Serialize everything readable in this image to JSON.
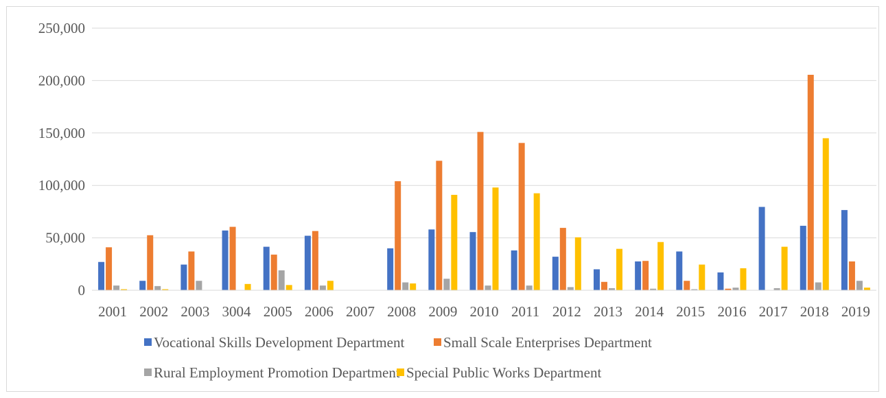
{
  "chart_data": {
    "type": "bar",
    "categories": [
      "2001",
      "2002",
      "2003",
      "3004",
      "2005",
      "2006",
      "2007",
      "2008",
      "2009",
      "2010",
      "2011",
      "2012",
      "2013",
      "2014",
      "2015",
      "2016",
      "2017",
      "2018",
      "2019"
    ],
    "series": [
      {
        "name": "Vocational Skills Development Department",
        "color": "#4472C4",
        "values": [
          27000,
          9000,
          24500,
          57000,
          41500,
          52000,
          0,
          40000,
          58000,
          55500,
          38000,
          32000,
          20000,
          27500,
          37000,
          17000,
          79500,
          61500,
          76500
        ]
      },
      {
        "name": "Small Scale Enterprises Department",
        "color": "#ED7D31",
        "values": [
          41000,
          52500,
          37000,
          60500,
          34000,
          56500,
          0,
          104000,
          123500,
          151000,
          140500,
          59500,
          8000,
          28000,
          9000,
          1500,
          0,
          205500,
          27500
        ]
      },
      {
        "name": "Rural Employment Promotion Department",
        "color": "#A5A5A5",
        "values": [
          4500,
          4000,
          9000,
          0,
          19000,
          4500,
          0,
          7500,
          11000,
          4500,
          4500,
          3000,
          2000,
          1500,
          1000,
          2500,
          2000,
          7500,
          9000
        ]
      },
      {
        "name": "Special Public Works Department",
        "color": "#FFC000",
        "values": [
          1000,
          1000,
          0,
          6000,
          5000,
          9000,
          0,
          6500,
          91000,
          98000,
          92500,
          50500,
          39500,
          46000,
          24500,
          21000,
          41500,
          145000,
          2500
        ]
      }
    ],
    "yticks": [
      "0",
      "50,000",
      "100,000",
      "150,000",
      "200,000",
      "250,000"
    ],
    "ylim": [
      0,
      250000
    ],
    "grid": true,
    "legend_position": "bottom"
  }
}
